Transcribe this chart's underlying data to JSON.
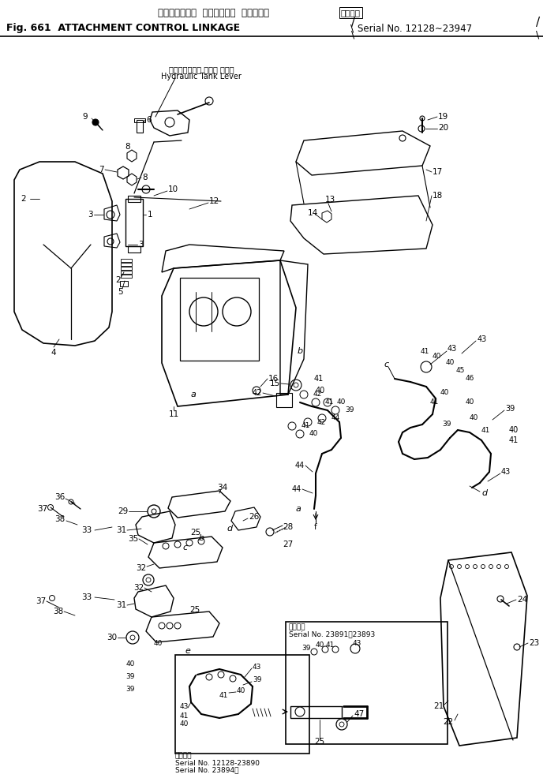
{
  "title_japanese": "アタッチメント  コントロール  リンケージ",
  "title_applicable": "適用号機",
  "title_english": "Fig. 661  ATTACHMENT CONTROL LINKAGE",
  "title_serial": "Serial No. 12128～23947",
  "background_color": "#ffffff",
  "line_color": "#000000",
  "text_color": "#000000",
  "label_note_japanese": "ハイドロリック タンク レバー",
  "label_note_english": "Hydraulic Tank Lever",
  "serial_box1_title": "適用号機",
  "serial_box1_line1": "Serial No. 12128-23890",
  "serial_box1_line2": "Serial No. 23894～",
  "serial_box2_title": "適用号機",
  "serial_box2_line1": "Serial No. 23891～23893",
  "fig_width": 6.88,
  "fig_height": 9.86,
  "dpi": 100
}
